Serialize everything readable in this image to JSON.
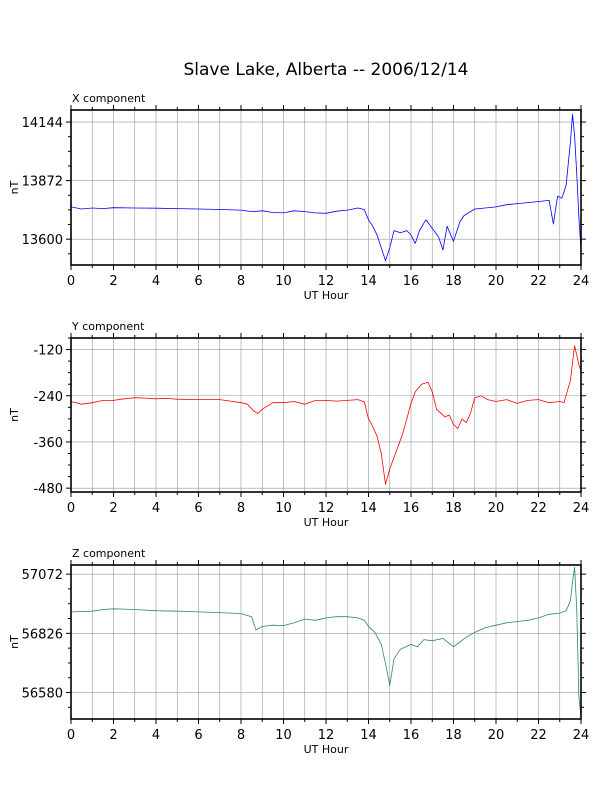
{
  "title": "Slave Lake, Alberta -- 2006/12/14",
  "chart_data": [
    {
      "type": "line",
      "label": "X component",
      "xlabel": "UT Hour",
      "ylabel": "nT",
      "color": "#0000ff",
      "xlim": [
        0,
        24
      ],
      "ylim": [
        13480,
        14200
      ],
      "yticks": [
        13600,
        13872,
        14144
      ],
      "xticks": [
        0,
        2,
        4,
        6,
        8,
        10,
        12,
        14,
        16,
        18,
        20,
        22,
        24
      ],
      "grid": true,
      "series": [
        {
          "values": [
            [
              0,
              13750
            ],
            [
              0.5,
              13740
            ],
            [
              1,
              13745
            ],
            [
              1.5,
              13742
            ],
            [
              2,
              13746
            ],
            [
              3,
              13745
            ],
            [
              4,
              13744
            ],
            [
              5,
              13742
            ],
            [
              6,
              13740
            ],
            [
              7,
              13738
            ],
            [
              8,
              13735
            ],
            [
              8.5,
              13728
            ],
            [
              9,
              13732
            ],
            [
              9.5,
              13724
            ],
            [
              10,
              13722
            ],
            [
              10.5,
              13732
            ],
            [
              11,
              13728
            ],
            [
              11.5,
              13722
            ],
            [
              12,
              13720
            ],
            [
              12.5,
              13730
            ],
            [
              13,
              13735
            ],
            [
              13.5,
              13745
            ],
            [
              13.8,
              13738
            ],
            [
              14,
              13690
            ],
            [
              14.2,
              13660
            ],
            [
              14.4,
              13620
            ],
            [
              14.6,
              13560
            ],
            [
              14.8,
              13500
            ],
            [
              15,
              13560
            ],
            [
              15.2,
              13640
            ],
            [
              15.5,
              13630
            ],
            [
              15.8,
              13640
            ],
            [
              16,
              13620
            ],
            [
              16.2,
              13580
            ],
            [
              16.4,
              13640
            ],
            [
              16.7,
              13690
            ],
            [
              17,
              13650
            ],
            [
              17.3,
              13610
            ],
            [
              17.5,
              13550
            ],
            [
              17.7,
              13660
            ],
            [
              18,
              13590
            ],
            [
              18.3,
              13680
            ],
            [
              18.5,
              13710
            ],
            [
              19,
              13740
            ],
            [
              19.5,
              13745
            ],
            [
              20,
              13750
            ],
            [
              20.5,
              13760
            ],
            [
              21,
              13765
            ],
            [
              21.5,
              13770
            ],
            [
              22,
              13775
            ],
            [
              22.5,
              13780
            ],
            [
              22.7,
              13670
            ],
            [
              22.9,
              13800
            ],
            [
              23.1,
              13790
            ],
            [
              23.3,
              13850
            ],
            [
              23.5,
              14050
            ],
            [
              23.6,
              14180
            ],
            [
              23.7,
              14080
            ],
            [
              23.8,
              13900
            ],
            [
              23.9,
              13700
            ],
            [
              24,
              13550
            ]
          ]
        }
      ]
    },
    {
      "type": "line",
      "label": "Y component",
      "xlabel": "UT Hour",
      "ylabel": "nT",
      "color": "#ff0000",
      "xlim": [
        0,
        24
      ],
      "ylim": [
        -490,
        -90
      ],
      "yticks": [
        -480,
        -360,
        -240,
        -120
      ],
      "xticks": [
        0,
        2,
        4,
        6,
        8,
        10,
        12,
        14,
        16,
        18,
        20,
        22,
        24
      ],
      "grid": true,
      "series": [
        {
          "values": [
            [
              0,
              -255
            ],
            [
              0.5,
              -262
            ],
            [
              1,
              -258
            ],
            [
              1.5,
              -252
            ],
            [
              2,
              -252
            ],
            [
              2.5,
              -248
            ],
            [
              3,
              -245
            ],
            [
              3.5,
              -246
            ],
            [
              4,
              -248
            ],
            [
              4.5,
              -247
            ],
            [
              5,
              -249
            ],
            [
              6,
              -250
            ],
            [
              7,
              -250
            ],
            [
              7.5,
              -254
            ],
            [
              8,
              -258
            ],
            [
              8.3,
              -262
            ],
            [
              8.6,
              -280
            ],
            [
              8.8,
              -286
            ],
            [
              9,
              -275
            ],
            [
              9.5,
              -258
            ],
            [
              10,
              -258
            ],
            [
              10.5,
              -255
            ],
            [
              11,
              -262
            ],
            [
              11.5,
              -252
            ],
            [
              12,
              -252
            ],
            [
              12.5,
              -254
            ],
            [
              13,
              -252
            ],
            [
              13.5,
              -250
            ],
            [
              13.8,
              -256
            ],
            [
              14,
              -300
            ],
            [
              14.2,
              -320
            ],
            [
              14.4,
              -345
            ],
            [
              14.6,
              -390
            ],
            [
              14.8,
              -470
            ],
            [
              15,
              -430
            ],
            [
              15.2,
              -400
            ],
            [
              15.4,
              -370
            ],
            [
              15.6,
              -340
            ],
            [
              15.8,
              -300
            ],
            [
              16,
              -260
            ],
            [
              16.2,
              -230
            ],
            [
              16.5,
              -210
            ],
            [
              16.8,
              -205
            ],
            [
              17,
              -230
            ],
            [
              17.2,
              -275
            ],
            [
              17.4,
              -285
            ],
            [
              17.6,
              -295
            ],
            [
              17.8,
              -290
            ],
            [
              18,
              -315
            ],
            [
              18.2,
              -325
            ],
            [
              18.4,
              -300
            ],
            [
              18.6,
              -310
            ],
            [
              18.8,
              -285
            ],
            [
              19,
              -245
            ],
            [
              19.3,
              -240
            ],
            [
              19.6,
              -250
            ],
            [
              20,
              -255
            ],
            [
              20.5,
              -250
            ],
            [
              21,
              -260
            ],
            [
              21.5,
              -252
            ],
            [
              22,
              -250
            ],
            [
              22.5,
              -258
            ],
            [
              23,
              -255
            ],
            [
              23.2,
              -258
            ],
            [
              23.5,
              -200
            ],
            [
              23.7,
              -110
            ],
            [
              23.9,
              -160
            ],
            [
              24,
              -175
            ]
          ]
        }
      ]
    },
    {
      "type": "line",
      "label": "Z component",
      "xlabel": "UT Hour",
      "ylabel": "nT",
      "color": "#2e8b57",
      "xlim": [
        0,
        24
      ],
      "ylim": [
        56470,
        57110
      ],
      "yticks": [
        56580,
        56826,
        57072
      ],
      "xticks": [
        0,
        2,
        4,
        6,
        8,
        10,
        12,
        14,
        16,
        18,
        20,
        22,
        24
      ],
      "grid": true,
      "series": [
        {
          "values": [
            [
              0,
              56915
            ],
            [
              1,
              56918
            ],
            [
              1.5,
              56925
            ],
            [
              2,
              56928
            ],
            [
              3,
              56925
            ],
            [
              4,
              56920
            ],
            [
              5,
              56918
            ],
            [
              6,
              56915
            ],
            [
              7,
              56912
            ],
            [
              8,
              56908
            ],
            [
              8.5,
              56895
            ],
            [
              8.7,
              56840
            ],
            [
              9,
              56855
            ],
            [
              9.5,
              56860
            ],
            [
              10,
              56858
            ],
            [
              10.5,
              56870
            ],
            [
              11,
              56885
            ],
            [
              11.5,
              56880
            ],
            [
              12,
              56890
            ],
            [
              12.5,
              56895
            ],
            [
              13,
              56895
            ],
            [
              13.5,
              56890
            ],
            [
              13.8,
              56880
            ],
            [
              14,
              56855
            ],
            [
              14.3,
              56830
            ],
            [
              14.6,
              56780
            ],
            [
              14.8,
              56700
            ],
            [
              15,
              56610
            ],
            [
              15.2,
              56720
            ],
            [
              15.5,
              56760
            ],
            [
              16,
              56780
            ],
            [
              16.3,
              56770
            ],
            [
              16.6,
              56800
            ],
            [
              17,
              56795
            ],
            [
              17.5,
              56805
            ],
            [
              18,
              56770
            ],
            [
              18.3,
              56790
            ],
            [
              18.6,
              56810
            ],
            [
              19,
              56830
            ],
            [
              19.5,
              56850
            ],
            [
              20,
              56860
            ],
            [
              20.5,
              56870
            ],
            [
              21,
              56875
            ],
            [
              21.5,
              56880
            ],
            [
              22,
              56890
            ],
            [
              22.5,
              56905
            ],
            [
              23,
              56910
            ],
            [
              23.3,
              56920
            ],
            [
              23.5,
              56960
            ],
            [
              23.6,
              57040
            ],
            [
              23.7,
              57100
            ],
            [
              23.8,
              56920
            ],
            [
              23.9,
              56560
            ],
            [
              24,
              56480
            ]
          ]
        }
      ]
    }
  ]
}
